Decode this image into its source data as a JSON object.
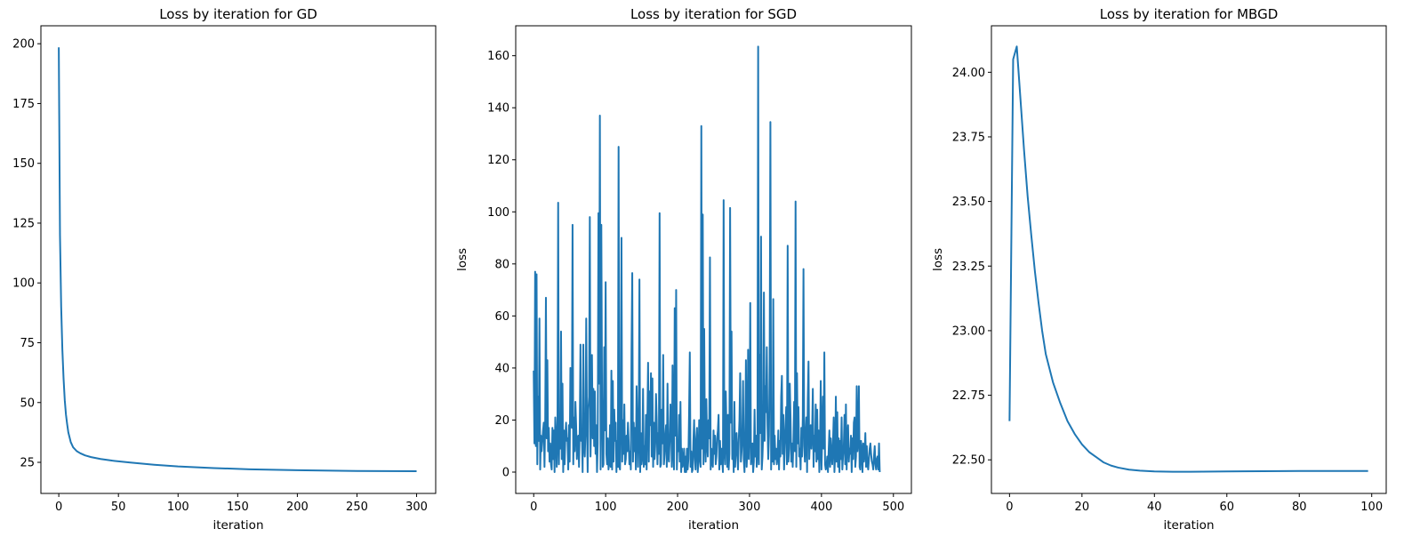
{
  "chart_data": [
    {
      "type": "line",
      "title": "Loss by iteration for GD",
      "xlabel": "iteration",
      "ylabel": "",
      "xlim": [
        -15,
        316
      ],
      "ylim": [
        12.0,
        207.5
      ],
      "xticks": [
        0,
        50,
        100,
        150,
        200,
        250,
        300
      ],
      "yticks": [
        25,
        50,
        75,
        100,
        125,
        150,
        175,
        200
      ],
      "color": "#1f77b4",
      "series": [
        {
          "x": [
            0,
            1,
            2,
            3,
            4,
            5,
            6,
            7,
            8,
            10,
            12,
            15,
            18,
            22,
            27,
            35,
            45,
            60,
            80,
            100,
            130,
            160,
            200,
            250,
            300
          ],
          "y": [
            198.5,
            120,
            90,
            72,
            60,
            51,
            45,
            41,
            37.5,
            33.5,
            31.3,
            29.7,
            28.8,
            27.9,
            27.2,
            26.4,
            25.7,
            24.9,
            24.0,
            23.3,
            22.6,
            22.1,
            21.7,
            21.4,
            21.3
          ]
        }
      ]
    },
    {
      "type": "line",
      "title": "Loss by iteration for SGD",
      "xlabel": "iteration",
      "ylabel": "loss",
      "xlim": [
        -25,
        525
      ],
      "ylim": [
        -8.2,
        171.5
      ],
      "xticks": [
        0,
        100,
        200,
        300,
        400,
        500
      ],
      "yticks": [
        0,
        20,
        40,
        60,
        80,
        100,
        120,
        140,
        160
      ],
      "color": "#1f77b4",
      "series": [
        {
          "x_start": 0,
          "x_step": 1,
          "y": [
            39,
            11,
            77,
            10,
            76,
            3,
            29,
            12,
            59,
            1,
            14,
            8,
            12,
            16,
            19,
            2,
            20,
            67,
            13,
            43,
            8,
            17,
            4,
            11,
            3,
            1,
            17,
            5,
            16,
            0,
            21,
            15,
            2,
            12,
            103.5,
            3,
            21,
            9,
            54,
            5,
            34,
            0,
            16,
            3,
            14,
            19,
            12,
            13,
            1,
            18,
            4,
            40,
            20,
            17,
            95,
            3,
            21,
            8,
            27,
            18,
            5,
            13,
            14,
            2,
            17,
            49,
            12,
            16,
            0,
            49,
            10,
            6,
            16,
            59,
            19,
            0,
            24,
            29,
            98,
            6,
            23,
            45,
            13,
            32,
            10,
            31,
            7,
            18,
            0,
            11,
            99.5,
            34,
            137,
            1,
            95,
            29,
            2,
            3,
            48,
            16,
            73,
            7,
            3,
            13,
            1,
            4,
            18,
            2,
            39,
            1,
            35,
            4,
            24,
            12,
            19,
            0,
            12,
            2,
            125,
            2,
            1,
            23,
            90,
            4,
            20,
            7,
            26,
            3,
            5,
            14,
            8,
            19,
            12,
            3,
            8,
            1,
            47,
            76.5,
            4,
            19,
            8,
            17,
            1,
            33,
            20,
            2,
            15,
            74,
            0,
            15,
            3,
            6,
            32,
            2,
            10,
            3,
            22,
            1,
            20,
            42,
            4,
            31,
            18,
            38,
            6,
            36,
            2,
            19,
            5,
            11,
            30,
            20,
            3,
            15,
            7,
            99.5,
            2,
            3,
            24,
            11,
            45,
            3,
            7,
            14,
            18,
            2,
            34,
            6,
            4,
            12,
            26,
            20,
            2,
            41,
            9,
            1,
            63,
            14,
            70,
            1,
            12,
            8,
            22,
            4,
            27,
            0,
            9,
            2,
            4,
            9,
            0,
            6,
            0,
            9,
            1,
            5,
            23,
            46,
            2,
            8,
            0,
            1,
            12,
            20,
            5,
            1,
            13,
            17,
            0,
            4,
            20,
            6,
            2,
            133,
            9,
            99,
            3,
            55,
            12,
            4,
            28,
            11,
            6,
            20,
            13,
            82.5,
            1,
            9,
            4,
            2,
            16,
            7,
            14,
            3,
            6,
            13,
            16,
            22,
            1,
            12,
            3,
            9,
            5,
            0,
            104.5,
            8,
            3,
            31,
            16,
            2,
            22,
            1,
            7,
            101.5,
            19,
            54,
            5,
            12,
            0,
            27,
            2,
            9,
            15,
            7,
            1,
            12,
            20,
            38,
            4,
            8,
            14,
            35,
            5,
            0,
            11,
            43,
            2,
            9,
            47,
            5,
            16,
            65,
            3,
            9,
            11,
            0,
            4,
            24,
            6,
            14,
            2,
            8,
            163.5,
            3,
            45,
            15,
            90.5,
            1,
            6,
            15,
            69,
            12,
            33,
            23,
            48,
            18,
            5,
            14,
            43,
            134.5,
            1,
            21,
            4,
            66.5,
            3,
            14,
            5,
            9,
            3,
            6,
            16,
            1,
            12,
            6,
            29,
            37,
            7,
            22,
            1,
            10,
            18,
            25,
            3,
            87,
            4,
            9,
            34,
            21,
            4,
            11,
            2,
            12,
            27,
            8,
            104,
            2,
            38,
            11,
            25,
            6,
            9,
            1,
            17,
            6,
            21,
            78,
            10,
            4,
            15,
            21,
            0,
            28,
            42.5,
            5,
            13,
            18,
            9,
            16,
            32,
            2,
            14,
            8,
            26,
            4,
            24,
            5,
            16,
            0,
            11,
            35,
            1,
            13,
            29,
            9,
            46,
            3,
            1,
            2,
            6,
            0,
            8,
            16,
            2,
            13,
            7,
            3,
            11,
            21,
            0,
            6,
            29,
            4,
            23,
            2,
            13,
            0,
            12,
            5,
            21,
            1,
            6,
            10,
            22,
            3,
            26,
            1,
            12,
            18,
            4,
            9,
            7,
            14,
            0,
            13,
            5,
            19,
            21,
            2,
            6,
            33,
            8,
            12,
            33,
            2,
            1,
            12,
            8,
            0,
            11,
            4,
            7,
            15,
            2,
            10,
            3,
            1,
            5,
            9,
            11,
            7,
            4,
            3,
            1,
            6,
            10,
            3,
            1,
            5,
            6,
            1,
            11,
            0
          ]
        }
      ]
    },
    {
      "type": "line",
      "title": "Loss by iteration for MBGD",
      "xlabel": "iteration",
      "ylabel": "loss",
      "xlim": [
        -5,
        104
      ],
      "ylim": [
        22.37,
        24.18
      ],
      "xticks": [
        0,
        20,
        40,
        60,
        80,
        100
      ],
      "ytick_labels": [
        "22.50",
        "22.75",
        "23.00",
        "23.25",
        "23.50",
        "23.75",
        "24.00"
      ],
      "color": "#1f77b4",
      "series": [
        {
          "x": [
            0,
            1,
            2,
            3,
            4,
            5,
            6,
            7,
            8,
            9,
            10,
            12,
            14,
            16,
            18,
            20,
            22,
            24,
            26,
            28,
            30,
            33,
            36,
            40,
            45,
            50,
            60,
            70,
            80,
            90,
            99
          ],
          "y": [
            22.65,
            24.05,
            24.1,
            23.9,
            23.7,
            23.52,
            23.37,
            23.23,
            23.11,
            23.0,
            22.91,
            22.8,
            22.72,
            22.65,
            22.6,
            22.56,
            22.53,
            22.51,
            22.49,
            22.478,
            22.47,
            22.462,
            22.458,
            22.455,
            22.454,
            22.454,
            22.455,
            22.456,
            22.457,
            22.457,
            22.457
          ]
        }
      ]
    }
  ]
}
